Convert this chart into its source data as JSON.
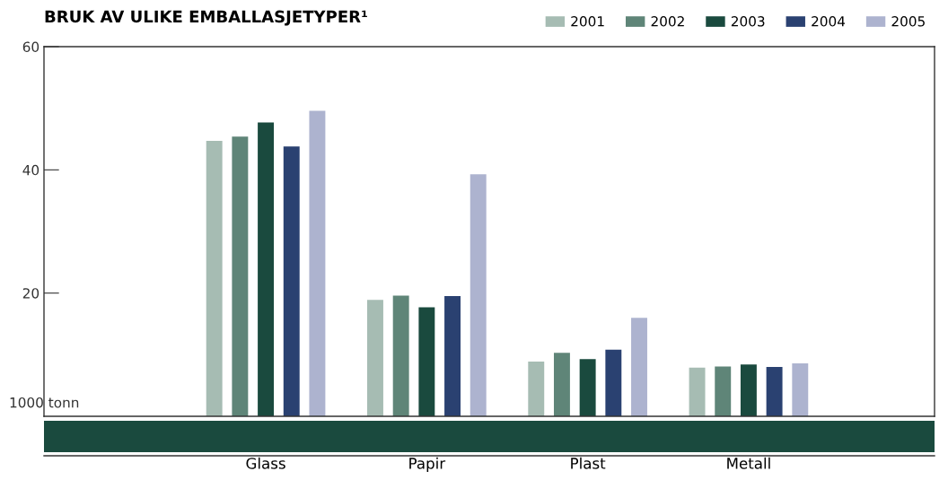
{
  "chart_data": {
    "type": "bar",
    "title": "BRUK AV ULIKE EMBALLASJETYPER¹",
    "ylabel": "1000 tonn",
    "categories": [
      "Glass",
      "Papir",
      "Plast",
      "Metall"
    ],
    "series": [
      {
        "name": "2001",
        "color": "#a6bcb3",
        "values": [
          44.7,
          18.9,
          8.9,
          7.9
        ]
      },
      {
        "name": "2002",
        "color": "#5f8578",
        "values": [
          45.4,
          19.6,
          10.3,
          8.1
        ]
      },
      {
        "name": "2003",
        "color": "#1a4a3e",
        "values": [
          47.7,
          17.7,
          9.3,
          8.4
        ]
      },
      {
        "name": "2004",
        "color": "#2a4171",
        "values": [
          43.8,
          19.5,
          10.8,
          8.0
        ]
      },
      {
        "name": "2005",
        "color": "#adb3cf",
        "values": [
          49.6,
          39.3,
          16.0,
          8.6
        ]
      }
    ],
    "ylim": [
      0,
      60
    ],
    "yticks": [
      20,
      40,
      60
    ],
    "grid": false,
    "legend": "top right"
  }
}
